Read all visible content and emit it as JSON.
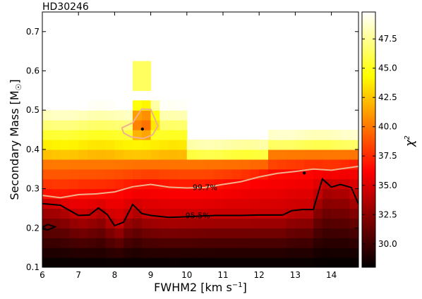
{
  "chart_data": {
    "type": "heatmap",
    "title": "HD30246",
    "xlabel": "FWHM2 [km s",
    "xlabel_sup": "−1",
    "xlabel_end": "]",
    "ylabel": "Secondary Mass [M",
    "ylabel_sub": "☉",
    "ylabel_end": "]",
    "colorbar_label": "χ",
    "colorbar_label_sup": "2",
    "xlim": [
      6,
      14.75
    ],
    "ylim": [
      0.1,
      0.75
    ],
    "x_ticks": [
      6,
      7,
      8,
      9,
      10,
      11,
      12,
      13,
      14
    ],
    "y_ticks": [
      0.1,
      0.2,
      0.3,
      0.4,
      0.5,
      0.6,
      0.7
    ],
    "y_tick_labels": [
      "0.1",
      "0.2",
      "0.3",
      "0.4",
      "0.5",
      "0.6",
      "0.7"
    ],
    "colorbar_range": [
      28.0,
      49.8
    ],
    "colorbar_ticks": [
      30.0,
      32.5,
      35.0,
      37.5,
      40.0,
      42.5,
      45.0,
      47.5
    ],
    "colorbar_tick_labels": [
      "30.0",
      "32.5",
      "35.0",
      "37.5",
      "40.0",
      "42.5",
      "45.0",
      "47.5"
    ],
    "colormap": [
      "#000000",
      "#550000",
      "#aa0000",
      "#ff0000",
      "#ff5500",
      "#ffaa00",
      "#ffff00",
      "#ffff80",
      "#ffffff"
    ],
    "x_cells": [
      6.0,
      6.25,
      6.5,
      6.75,
      7.0,
      7.25,
      7.5,
      7.75,
      8.0,
      8.25,
      8.5,
      8.75,
      9.0,
      9.25,
      9.5,
      9.75,
      10.0,
      10.25,
      10.5,
      10.75,
      11.0,
      11.25,
      11.5,
      11.75,
      12.0,
      12.25,
      12.5,
      12.75,
      13.0,
      13.25,
      13.5,
      13.75,
      14.0,
      14.25,
      14.5,
      14.75
    ],
    "y_cells": [
      0.1,
      0.125,
      0.15,
      0.175,
      0.2,
      0.225,
      0.25,
      0.275,
      0.3,
      0.325,
      0.35,
      0.375,
      0.4,
      0.425,
      0.45,
      0.475,
      0.5,
      0.525,
      0.55,
      0.575,
      0.6,
      0.625,
      0.65,
      0.675,
      0.7,
      0.725,
      0.75
    ],
    "contours": [
      {
        "name": "99.7%",
        "color": "#f0b08a",
        "paths": [
          [
            [
              6.0,
              0.283
            ],
            [
              6.5,
              0.277
            ],
            [
              7.0,
              0.285
            ],
            [
              7.5,
              0.287
            ],
            [
              8.0,
              0.292
            ],
            [
              8.5,
              0.305
            ],
            [
              9.0,
              0.311
            ],
            [
              9.5,
              0.304
            ],
            [
              10.0,
              0.302
            ],
            [
              10.5,
              0.303
            ],
            [
              11.0,
              0.311
            ],
            [
              11.5,
              0.318
            ],
            [
              12.0,
              0.33
            ],
            [
              12.5,
              0.339
            ],
            [
              13.0,
              0.344
            ],
            [
              13.5,
              0.35
            ],
            [
              14.0,
              0.347
            ],
            [
              14.75,
              0.357
            ]
          ],
          [
            [
              8.2,
              0.455
            ],
            [
              8.5,
              0.468
            ],
            [
              8.75,
              0.503
            ],
            [
              9.0,
              0.502
            ],
            [
              9.2,
              0.46
            ],
            [
              9.05,
              0.437
            ],
            [
              8.8,
              0.428
            ],
            [
              8.45,
              0.432
            ],
            [
              8.25,
              0.442
            ],
            [
              8.2,
              0.455
            ]
          ]
        ]
      },
      {
        "name": "95.5%",
        "color": "#000000",
        "paths": [
          [
            [
              6.0,
              0.262
            ],
            [
              6.5,
              0.258
            ],
            [
              7.0,
              0.232
            ],
            [
              7.3,
              0.233
            ],
            [
              7.55,
              0.251
            ],
            [
              7.8,
              0.234
            ],
            [
              8.0,
              0.206
            ],
            [
              8.25,
              0.215
            ],
            [
              8.5,
              0.26
            ],
            [
              8.75,
              0.237
            ],
            [
              9.0,
              0.232
            ],
            [
              9.5,
              0.227
            ],
            [
              9.8,
              0.228
            ],
            [
              10.8,
              0.232
            ],
            [
              11.5,
              0.232
            ],
            [
              12.0,
              0.233
            ],
            [
              12.65,
              0.233
            ],
            [
              12.9,
              0.244
            ],
            [
              13.2,
              0.247
            ],
            [
              13.5,
              0.247
            ],
            [
              13.75,
              0.325
            ],
            [
              14.0,
              0.304
            ],
            [
              14.25,
              0.311
            ],
            [
              14.55,
              0.303
            ],
            [
              14.75,
              0.261
            ]
          ],
          [
            [
              6.0,
              0.202
            ],
            [
              6.15,
              0.209
            ],
            [
              6.35,
              0.203
            ],
            [
              6.15,
              0.195
            ],
            [
              6.0,
              0.198
            ]
          ]
        ]
      }
    ],
    "contour_labels": [
      {
        "text": "99.7%",
        "x": 10.5,
        "y": 0.304,
        "color": "#000000"
      },
      {
        "text": "95.5%",
        "x": 10.3,
        "y": 0.232,
        "color": "#000000"
      }
    ],
    "markers": [
      {
        "x": 8.77,
        "y": 0.452
      },
      {
        "x": 13.25,
        "y": 0.34
      }
    ]
  }
}
